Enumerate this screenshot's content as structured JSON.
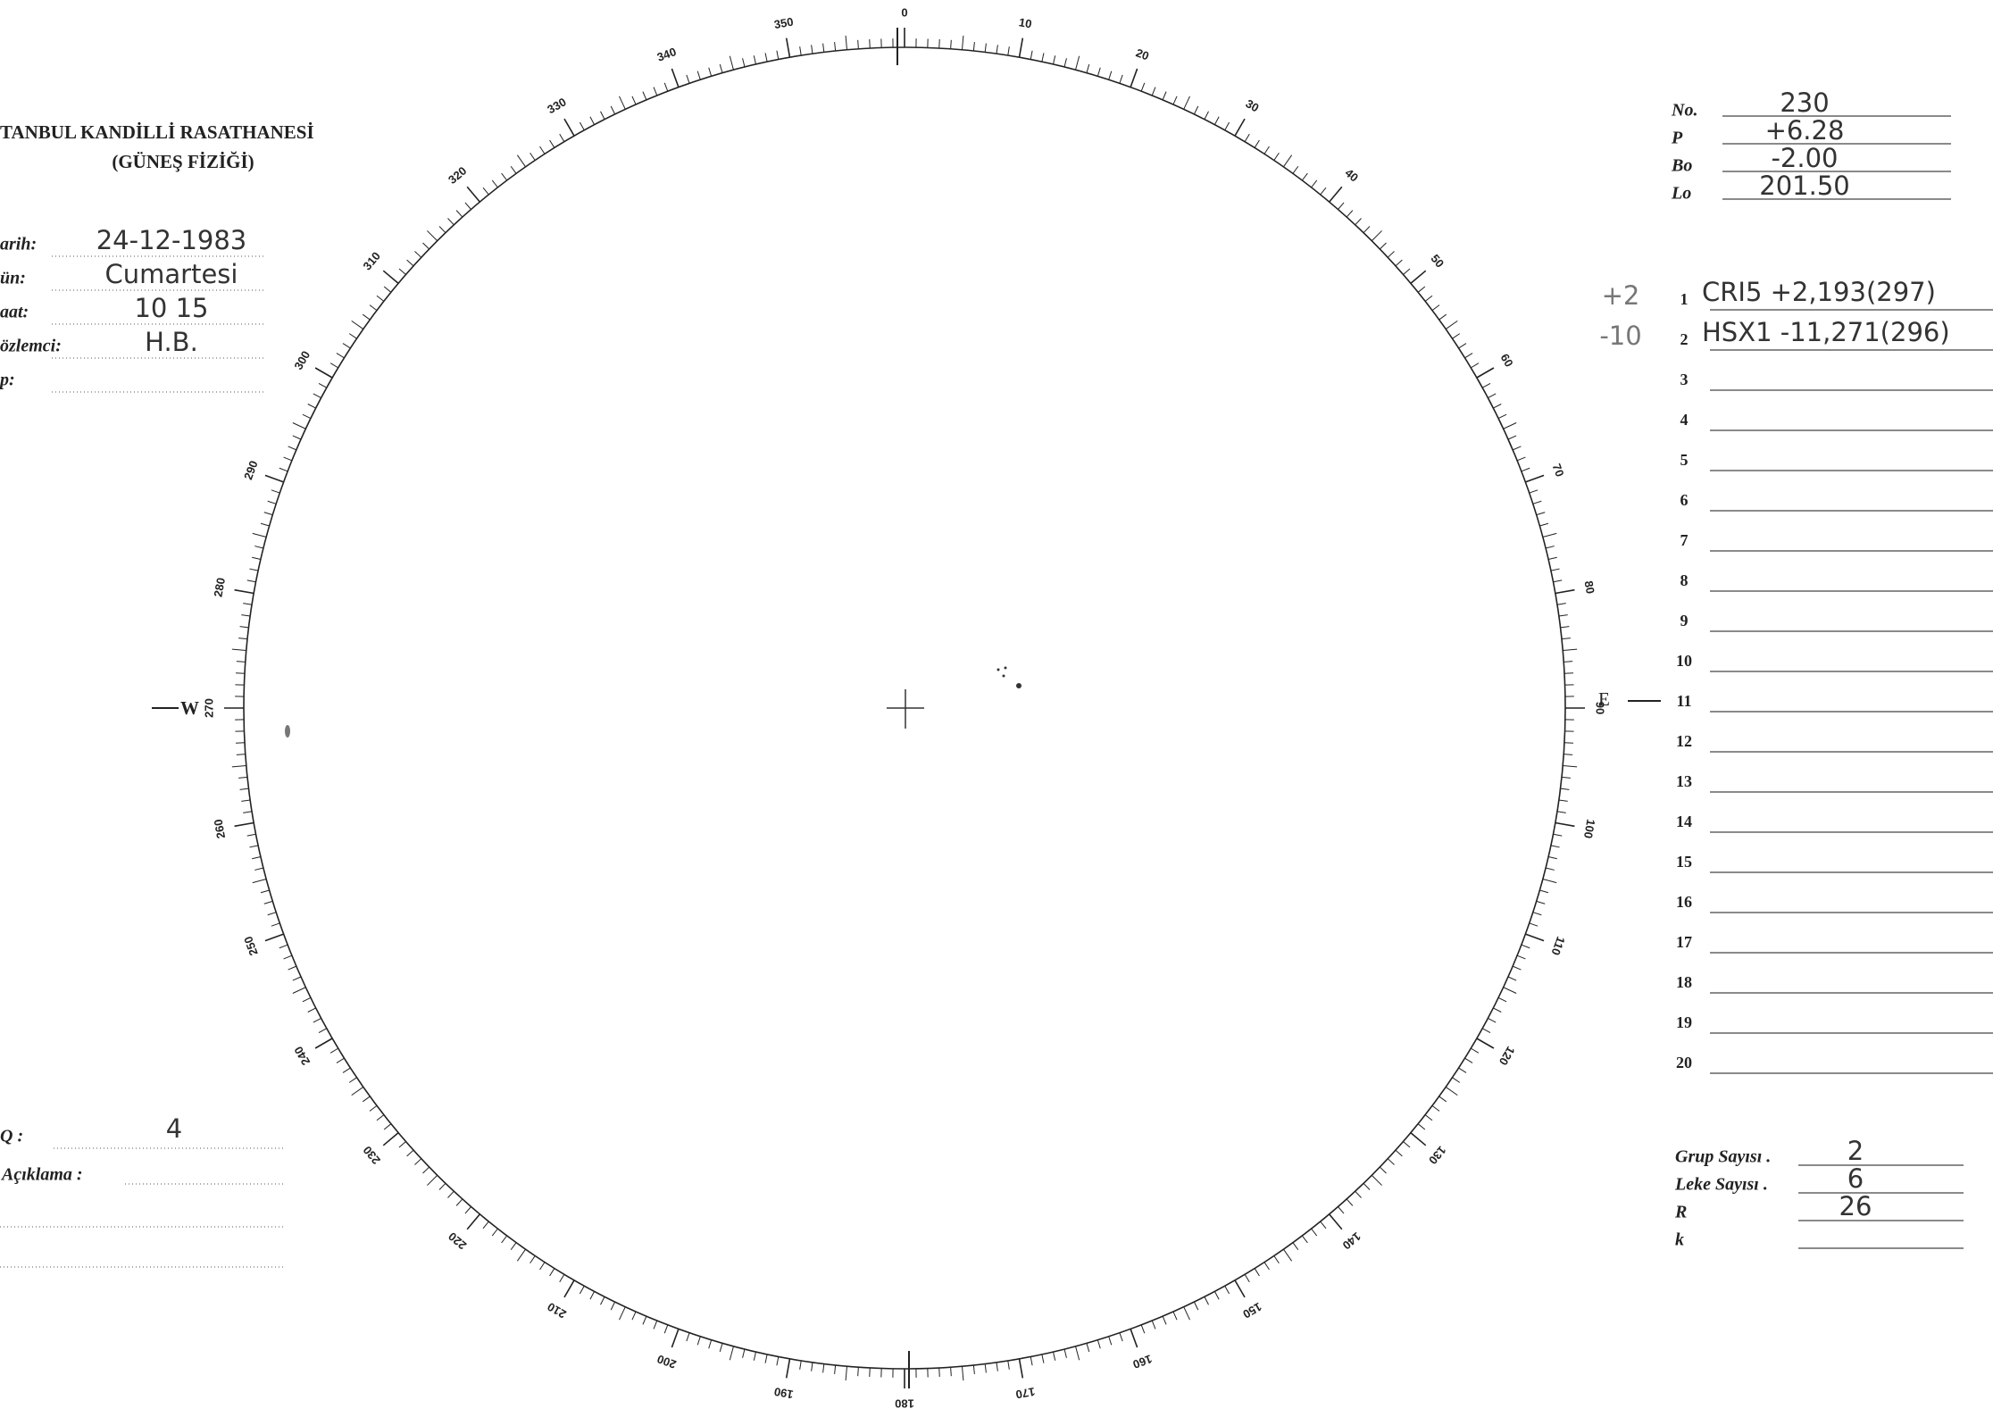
{
  "header": {
    "title": "TANBUL KANDİLLİ RASATHANESİ",
    "subtitle": "(GÜNEŞ FİZİĞİ)"
  },
  "fields": [
    {
      "label": "arih:",
      "value": "24-12-1983"
    },
    {
      "label": "ün:",
      "value": "Cumartesi"
    },
    {
      "label": "aat:",
      "value": "10 15"
    },
    {
      "label": "özlemci:",
      "value": "H.B."
    },
    {
      "label": "p:",
      "value": ""
    }
  ],
  "parameters": [
    {
      "label": "No.",
      "value": "230"
    },
    {
      "label": "P",
      "value": "+6.28"
    },
    {
      "label": "Bo",
      "value": "-2.00"
    },
    {
      "label": "Lo",
      "value": "201.50"
    }
  ],
  "groups": [
    {
      "number": "1",
      "note": "+2",
      "text": "CRI5 +2,193(297)"
    },
    {
      "number": "2",
      "note": "-10",
      "text": "HSX1 -11,271(296)"
    },
    {
      "number": "3"
    },
    {
      "number": "4"
    },
    {
      "number": "5"
    },
    {
      "number": "6"
    },
    {
      "number": "7"
    },
    {
      "number": "8"
    },
    {
      "number": "9"
    },
    {
      "number": "10"
    },
    {
      "number": "11"
    },
    {
      "number": "12"
    },
    {
      "number": "13"
    },
    {
      "number": "14"
    },
    {
      "number": "15"
    },
    {
      "number": "16"
    },
    {
      "number": "17"
    },
    {
      "number": "18"
    },
    {
      "number": "19"
    },
    {
      "number": "20"
    }
  ],
  "dial": {
    "labels": [
      "0",
      "10",
      "20",
      "30",
      "40",
      "50",
      "60",
      "70",
      "80",
      "90",
      "100",
      "110",
      "120",
      "130",
      "140",
      "150",
      "160",
      "170",
      "180",
      "190",
      "200",
      "210",
      "220",
      "230",
      "240",
      "250",
      "260",
      "270",
      "280",
      "290",
      "300",
      "310",
      "320",
      "330",
      "340",
      "350"
    ],
    "west": "W",
    "east": "E"
  },
  "quality": {
    "label": "Q :",
    "value": "4"
  },
  "remarks": {
    "label": "Açıklama :"
  },
  "summary": [
    {
      "label": "Grup Sayısı .",
      "value": "2"
    },
    {
      "label": "Leke Sayısı .",
      "value": "6"
    },
    {
      "label": "R",
      "value": "26"
    },
    {
      "label": "k",
      "value": ""
    }
  ]
}
